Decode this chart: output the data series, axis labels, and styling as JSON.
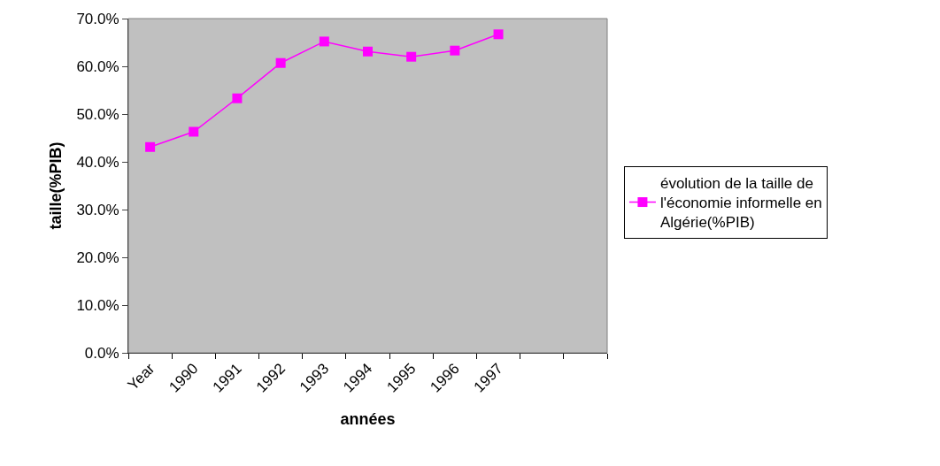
{
  "chart_data": {
    "type": "line",
    "xlabel": "années",
    "ylabel": "taille(%PIB)",
    "categories": [
      "Year",
      "1990",
      "1991",
      "1992",
      "1993",
      "1994",
      "1995",
      "1996",
      "1997",
      null,
      null
    ],
    "series": [
      {
        "name": "évolution de la taille de l'économie informelle en Algérie(%PIB)",
        "color": "#ff00ff",
        "values": [
          43.1,
          46.3,
          53.3,
          60.7,
          65.2,
          63.1,
          62.0,
          63.3,
          66.7,
          null,
          null
        ]
      }
    ],
    "ylim": [
      0,
      70
    ],
    "yticks": [
      {
        "value": 0,
        "label": "0.0%"
      },
      {
        "value": 10,
        "label": "10.0%"
      },
      {
        "value": 20,
        "label": "20.0%"
      },
      {
        "value": 30,
        "label": "30.0%"
      },
      {
        "value": 40,
        "label": "40.0%"
      },
      {
        "value": 50,
        "label": "50.0%"
      },
      {
        "value": 60,
        "label": "60.0%"
      },
      {
        "value": 70,
        "label": "70.0%"
      }
    ],
    "grid": false,
    "legend": "right",
    "marker": "square",
    "line_style": "solid"
  }
}
